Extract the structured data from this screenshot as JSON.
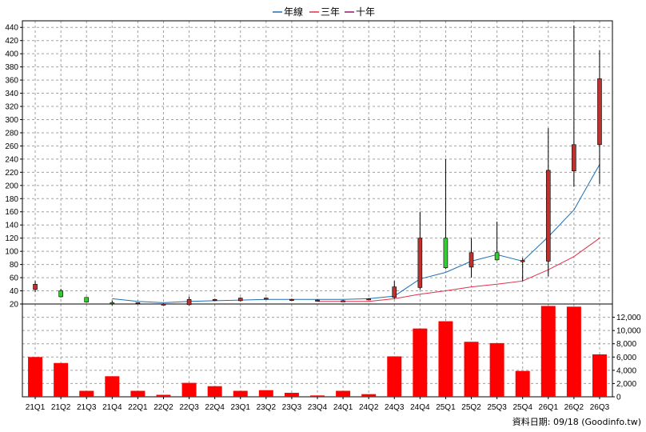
{
  "chart_data": {
    "type": "candlestick_with_volume",
    "categories": [
      "21Q1",
      "21Q2",
      "21Q3",
      "21Q4",
      "22Q1",
      "22Q2",
      "22Q3",
      "22Q4",
      "23Q1",
      "23Q2",
      "23Q3",
      "23Q4",
      "24Q1",
      "24Q2",
      "24Q3",
      "24Q4",
      "25Q1",
      "25Q2",
      "25Q3",
      "25Q4",
      "26Q1",
      "26Q2",
      "26Q3"
    ],
    "legend": [
      {
        "name": "年線",
        "color": "#1f6fb5"
      },
      {
        "name": "三年",
        "color": "#e0304a"
      },
      {
        "name": "十年",
        "color": "#8a1a6a"
      }
    ],
    "price_axis": {
      "ylim": [
        20,
        450
      ],
      "ticks": [
        20,
        40,
        60,
        80,
        100,
        120,
        140,
        160,
        180,
        200,
        220,
        240,
        260,
        280,
        300,
        320,
        340,
        360,
        380,
        400,
        420,
        440
      ]
    },
    "volume_axis": {
      "ylim": [
        0,
        14000
      ],
      "ticks": [
        0,
        2000,
        4000,
        6000,
        8000,
        10000,
        12000
      ],
      "tick_labels": [
        "0",
        "2,000",
        "4,000",
        "6,000",
        "8,000",
        "10,000",
        "12,000"
      ]
    },
    "candles": [
      {
        "open": 42,
        "close": 50,
        "high": 55,
        "low": 38
      },
      {
        "open": 40,
        "close": 31,
        "high": 43,
        "low": 30
      },
      {
        "open": 30,
        "close": 23,
        "high": 30,
        "low": 22
      },
      {
        "open": 22,
        "close": 21,
        "high": 25,
        "low": 18
      },
      {
        "open": 22,
        "close": 22,
        "high": 22,
        "low": 21
      },
      {
        "open": 20,
        "close": 20,
        "high": 21,
        "low": 19
      },
      {
        "open": 19,
        "close": 27,
        "high": 31,
        "low": 18
      },
      {
        "open": 26,
        "close": 27,
        "high": 28,
        "low": 25
      },
      {
        "open": 25,
        "close": 29,
        "high": 30,
        "low": 24
      },
      {
        "open": 28,
        "close": 29,
        "high": 30,
        "low": 27
      },
      {
        "open": 27,
        "close": 27,
        "high": 28,
        "low": 26
      },
      {
        "open": 26,
        "close": 26,
        "high": 27,
        "low": 25
      },
      {
        "open": 25,
        "close": 25,
        "high": 26,
        "low": 24
      },
      {
        "open": 27,
        "close": 28,
        "high": 29,
        "low": 27
      },
      {
        "open": 30,
        "close": 46,
        "high": 55,
        "low": 28
      },
      {
        "open": 45,
        "close": 120,
        "high": 160,
        "low": 42
      },
      {
        "open": 120,
        "close": 75,
        "high": 240,
        "low": 73
      },
      {
        "open": 76,
        "close": 98,
        "high": 120,
        "low": 60
      },
      {
        "open": 98,
        "close": 87,
        "high": 145,
        "low": 86
      },
      {
        "open": 86,
        "close": 86,
        "high": 90,
        "low": 55
      },
      {
        "open": 85,
        "close": 223,
        "high": 287,
        "low": 62
      },
      {
        "open": 222,
        "close": 262,
        "high": 443,
        "low": 198
      },
      {
        "open": 262,
        "close": 362,
        "high": 405,
        "low": 202
      }
    ],
    "series": [
      {
        "name": "年線",
        "values": [
          null,
          null,
          null,
          28,
          24,
          22,
          24,
          25,
          26,
          27,
          27,
          27,
          27,
          28,
          32,
          58,
          68,
          85,
          95,
          85,
          122,
          163,
          232
        ]
      },
      {
        "name": "三年",
        "values": [
          null,
          null,
          null,
          null,
          null,
          null,
          null,
          null,
          null,
          null,
          null,
          24,
          24,
          24,
          28,
          35,
          40,
          46,
          50,
          55,
          72,
          92,
          120
        ]
      },
      {
        "name": "十年",
        "values": [
          null,
          null,
          null,
          null,
          null,
          null,
          null,
          null,
          null,
          null,
          null,
          null,
          null,
          null,
          null,
          null,
          null,
          null,
          null,
          null,
          null,
          null,
          null
        ]
      }
    ],
    "volume": [
      6000,
      5100,
      900,
      3100,
      900,
      300,
      2100,
      1600,
      900,
      1000,
      600,
      200,
      900,
      400,
      6100,
      10300,
      11400,
      8300,
      8100,
      3900,
      13700,
      13600,
      6400
    ],
    "bar_color": "#ff0000",
    "up_color": "#c0302c",
    "down_color": "#33cc33",
    "grid": true
  },
  "source_label": "資料日期: 09/18  (Goodinfo.tw)"
}
